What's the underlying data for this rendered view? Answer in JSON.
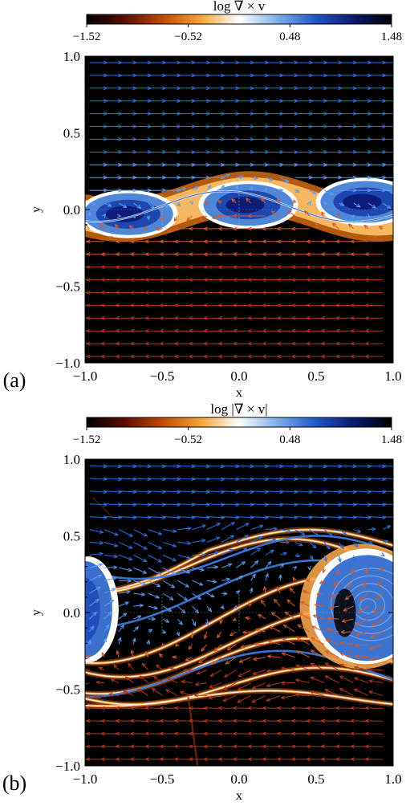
{
  "chart_data": [
    {
      "type": "heatmap",
      "panel_label": "(a)",
      "colorbar": {
        "title": "log ∇ × v",
        "ticks": [
          "−1.52",
          "−0.52",
          "0.48",
          "1.48"
        ],
        "range": [
          -1.52,
          1.48
        ],
        "stops": [
          "#000000",
          "#5a0d00",
          "#c24a00",
          "#f7a53a",
          "#ffffff",
          "#7fb0ea",
          "#1f58c8",
          "#0a1a6e",
          "#000000"
        ]
      },
      "xlabel": "x",
      "ylabel": "y",
      "xlim": [
        -1.0,
        1.0
      ],
      "ylim": [
        -1.0,
        1.0
      ],
      "xticks": [
        "−1.0",
        "−0.5",
        "0.0",
        "0.5",
        "1.0"
      ],
      "yticks": [
        "−1.0",
        "−0.5",
        "0.0",
        "0.5",
        "1.0"
      ],
      "vector_field": "velocity arrows: rightward above the shear layer, leftward below",
      "features": "single wavy shear layer near y=0 with three rolled-up vortices centered near x=-0.75, 0.05, 0.8"
    },
    {
      "type": "heatmap",
      "panel_label": "(b)",
      "colorbar": {
        "title": "log |∇ × v|",
        "ticks": [
          "−1.52",
          "−0.52",
          "0.48",
          "1.48"
        ],
        "range": [
          -1.52,
          1.48
        ],
        "stops": [
          "#000000",
          "#5a0d00",
          "#c24a00",
          "#f7a53a",
          "#ffffff",
          "#7fb0ea",
          "#1f58c8",
          "#0a1a6e",
          "#000000"
        ]
      },
      "xlabel": "x",
      "ylabel": "y",
      "xlim": [
        -1.0,
        1.0
      ],
      "ylim": [
        -1.0,
        1.0
      ],
      "xticks": [
        "−1.0",
        "−0.5",
        "0.0",
        "0.5",
        "1.0"
      ],
      "yticks": [
        "−1.0",
        "−0.5",
        "0.0",
        "0.5",
        "1.0"
      ],
      "vector_field": "velocity arrows: rightward in upper region, leftward in lower region, mixed in turbulent layer",
      "features": "turbulent mixing layer with filaments; large vortex near x=0.8, y=0.05 and partial vortex at left edge"
    }
  ]
}
